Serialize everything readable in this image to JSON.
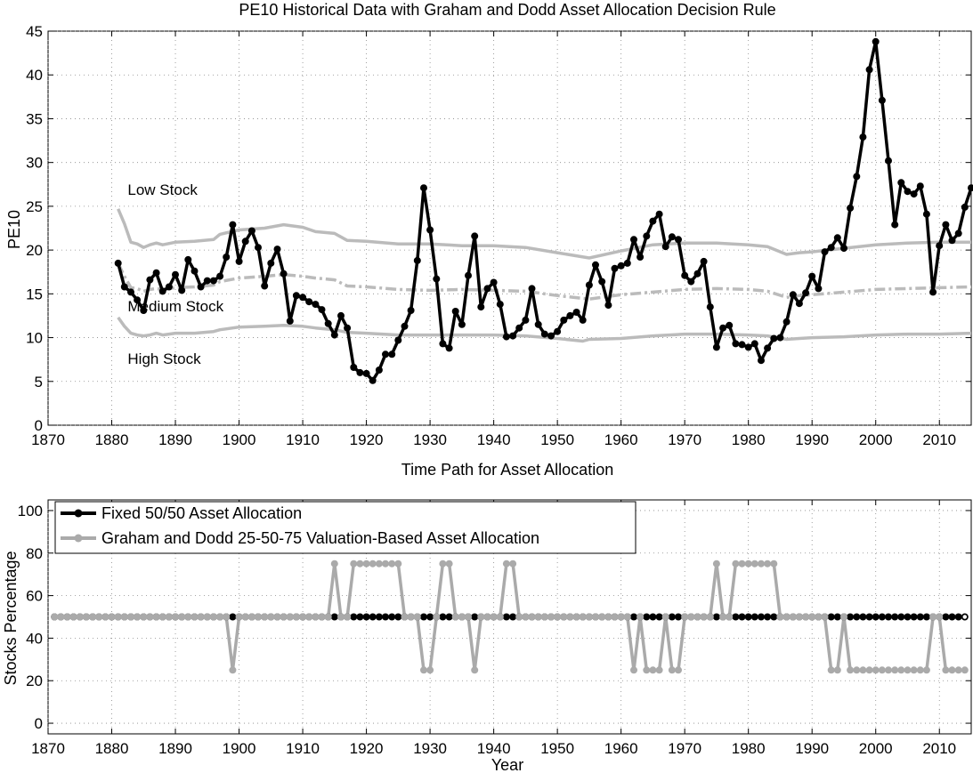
{
  "chart_data": [
    {
      "type": "line",
      "title": "PE10 Historical Data with Graham and Dodd Asset Allocation Decision Rule",
      "xlabel": "",
      "ylabel": "PE10",
      "xlim": [
        1870,
        2015
      ],
      "ylim": [
        0,
        45
      ],
      "xticks": [
        1870,
        1880,
        1890,
        1900,
        1910,
        1920,
        1930,
        1940,
        1950,
        1960,
        1970,
        1980,
        1990,
        2000,
        2010
      ],
      "yticks": [
        0,
        5,
        10,
        15,
        20,
        25,
        30,
        35,
        40,
        45
      ],
      "grid": true,
      "colors": {
        "pe10": "#000000",
        "bands": "#bbbbbb"
      },
      "annotations": [
        {
          "text": "Low Stock",
          "x": 1882.5,
          "y": 26.3
        },
        {
          "text": "Medium Stock",
          "x": 1882.5,
          "y": 13.0
        },
        {
          "text": "High Stock",
          "x": 1882.5,
          "y": 7.0
        }
      ],
      "series": [
        {
          "role": "pe10",
          "x_start": 1881,
          "values": [
            18.5,
            15.8,
            15.2,
            14.3,
            13.1,
            16.6,
            17.4,
            15.3,
            15.8,
            17.2,
            15.4,
            18.9,
            17.6,
            15.8,
            16.5,
            16.5,
            17.0,
            19.2,
            22.9,
            18.7,
            21.0,
            22.2,
            20.3,
            15.9,
            18.5,
            20.1,
            17.3,
            11.9,
            14.8,
            14.6,
            14.1,
            13.8,
            13.2,
            11.6,
            10.3,
            12.5,
            11.1,
            6.6,
            6.0,
            5.9,
            5.1,
            6.3,
            8.1,
            8.1,
            9.7,
            11.3,
            13.1,
            18.8,
            27.1,
            22.3,
            16.7,
            9.3,
            8.8,
            13.0,
            11.5,
            17.1,
            21.6,
            13.5,
            15.6,
            16.3,
            13.8,
            10.1,
            10.2,
            11.1,
            12.0,
            15.6,
            11.5,
            10.4,
            10.2,
            10.7,
            12.0,
            12.5,
            12.9,
            12.0,
            16.0,
            18.3,
            16.4,
            13.7,
            17.9,
            18.2,
            18.5,
            21.2,
            19.2,
            21.6,
            23.3,
            24.1,
            20.4,
            21.5,
            21.2,
            17.1,
            16.4,
            17.3,
            18.7,
            13.5,
            8.9,
            11.1,
            11.4,
            9.3,
            9.2,
            8.9,
            9.3,
            7.4,
            8.8,
            9.9,
            10.0,
            11.8,
            14.9,
            13.9,
            15.1,
            17.0,
            15.6,
            19.8,
            20.3,
            21.4,
            20.2,
            24.8,
            28.4,
            32.9,
            40.6,
            43.8,
            37.1,
            30.2,
            22.9,
            27.7,
            26.7,
            26.4,
            27.3,
            24.1,
            15.2,
            20.5,
            22.9,
            21.1,
            21.9,
            24.9,
            27.1
          ]
        },
        {
          "role": "upper-band",
          "x": [
            1881,
            1882,
            1883,
            1884,
            1885,
            1886,
            1887,
            1888,
            1890,
            1893,
            1896,
            1897,
            1900,
            1904,
            1907,
            1910,
            1912,
            1915,
            1917,
            1920,
            1925,
            1930,
            1935,
            1940,
            1945,
            1950,
            1955,
            1960,
            1965,
            1970,
            1975,
            1980,
            1983,
            1986,
            1988,
            1990,
            1995,
            2000,
            2005,
            2010,
            2015
          ],
          "values": [
            24.7,
            23.0,
            20.9,
            20.7,
            20.3,
            20.6,
            20.8,
            20.6,
            20.9,
            21.0,
            21.2,
            21.8,
            22.3,
            22.5,
            22.9,
            22.6,
            22.1,
            21.9,
            21.1,
            21.0,
            20.7,
            20.7,
            20.5,
            20.5,
            20.3,
            19.7,
            19.1,
            19.9,
            20.6,
            20.8,
            20.8,
            20.6,
            20.4,
            19.5,
            19.7,
            19.8,
            20.2,
            20.6,
            20.8,
            20.9,
            20.9
          ]
        },
        {
          "role": "middle-band",
          "x": [
            1881,
            1882,
            1883,
            1884,
            1885,
            1886,
            1887,
            1888,
            1890,
            1893,
            1896,
            1897,
            1900,
            1904,
            1907,
            1910,
            1912,
            1915,
            1917,
            1920,
            1925,
            1930,
            1935,
            1940,
            1945,
            1950,
            1955,
            1960,
            1965,
            1970,
            1975,
            1980,
            1983,
            1986,
            1988,
            1990,
            1995,
            2000,
            2005,
            2010,
            2015
          ],
          "values": [
            18.5,
            17.0,
            15.7,
            15.6,
            15.3,
            15.5,
            15.6,
            15.5,
            15.7,
            15.8,
            16.0,
            16.4,
            16.8,
            17.0,
            17.2,
            17.0,
            16.8,
            16.6,
            15.9,
            15.8,
            15.5,
            15.4,
            15.5,
            15.4,
            15.3,
            14.8,
            14.4,
            14.9,
            15.2,
            15.5,
            15.6,
            15.5,
            15.3,
            14.6,
            14.8,
            14.9,
            15.2,
            15.5,
            15.6,
            15.7,
            15.8
          ]
        },
        {
          "role": "lower-band",
          "x": [
            1881,
            1882,
            1883,
            1884,
            1885,
            1886,
            1887,
            1888,
            1890,
            1893,
            1896,
            1897,
            1900,
            1904,
            1907,
            1910,
            1912,
            1915,
            1917,
            1920,
            1925,
            1930,
            1935,
            1940,
            1945,
            1950,
            1954,
            1955,
            1960,
            1965,
            1970,
            1975,
            1980,
            1983,
            1986,
            1988,
            1990,
            1995,
            2000,
            2005,
            2010,
            2015
          ],
          "values": [
            12.3,
            11.3,
            10.5,
            10.3,
            10.2,
            10.3,
            10.5,
            10.3,
            10.5,
            10.5,
            10.7,
            10.9,
            11.2,
            11.3,
            11.4,
            11.3,
            11.1,
            10.9,
            10.6,
            10.5,
            10.3,
            10.3,
            10.3,
            10.3,
            10.2,
            9.9,
            9.6,
            9.8,
            9.9,
            10.2,
            10.4,
            10.4,
            10.3,
            10.2,
            9.8,
            9.9,
            10.0,
            10.1,
            10.3,
            10.4,
            10.4,
            10.5
          ]
        }
      ]
    },
    {
      "type": "line",
      "title": "Time Path for Asset Allocation",
      "xlabel": "Year",
      "ylabel": "Stocks Percentage",
      "xlim": [
        1870,
        2015
      ],
      "ylim": [
        -5,
        105
      ],
      "xticks": [
        1870,
        1880,
        1890,
        1900,
        1910,
        1920,
        1930,
        1940,
        1950,
        1960,
        1970,
        1980,
        1990,
        2000,
        2010
      ],
      "yticks": [
        0,
        20,
        40,
        60,
        80,
        100
      ],
      "grid": true,
      "legend": "top-left",
      "series": [
        {
          "name": "Fixed 50/50 Asset Allocation",
          "color": "#000000",
          "x_start": 1871,
          "x_end": 2014,
          "value": 50
        },
        {
          "name": "Graham and Dodd 25-50-75 Valuation-Based Asset Allocation",
          "color": "#aaaaaa",
          "x_start": 1871,
          "x_end": 2014,
          "default": 50,
          "overrides": {
            "1899": 25,
            "1915": 75,
            "1918": 75,
            "1919": 75,
            "1920": 75,
            "1921": 75,
            "1922": 75,
            "1923": 75,
            "1924": 75,
            "1925": 75,
            "1929": 25,
            "1930": 25,
            "1932": 75,
            "1933": 75,
            "1937": 25,
            "1942": 75,
            "1943": 75,
            "1962": 25,
            "1964": 25,
            "1965": 25,
            "1966": 25,
            "1968": 25,
            "1969": 25,
            "1975": 75,
            "1978": 75,
            "1979": 75,
            "1980": 75,
            "1981": 75,
            "1982": 75,
            "1983": 75,
            "1984": 75,
            "1993": 25,
            "1994": 25,
            "1996": 25,
            "1997": 25,
            "1998": 25,
            "1999": 25,
            "2000": 25,
            "2001": 25,
            "2002": 25,
            "2003": 25,
            "2004": 25,
            "2005": 25,
            "2006": 25,
            "2007": 25,
            "2008": 25,
            "2011": 25,
            "2012": 25,
            "2013": 25,
            "2014": 25
          }
        }
      ]
    }
  ]
}
